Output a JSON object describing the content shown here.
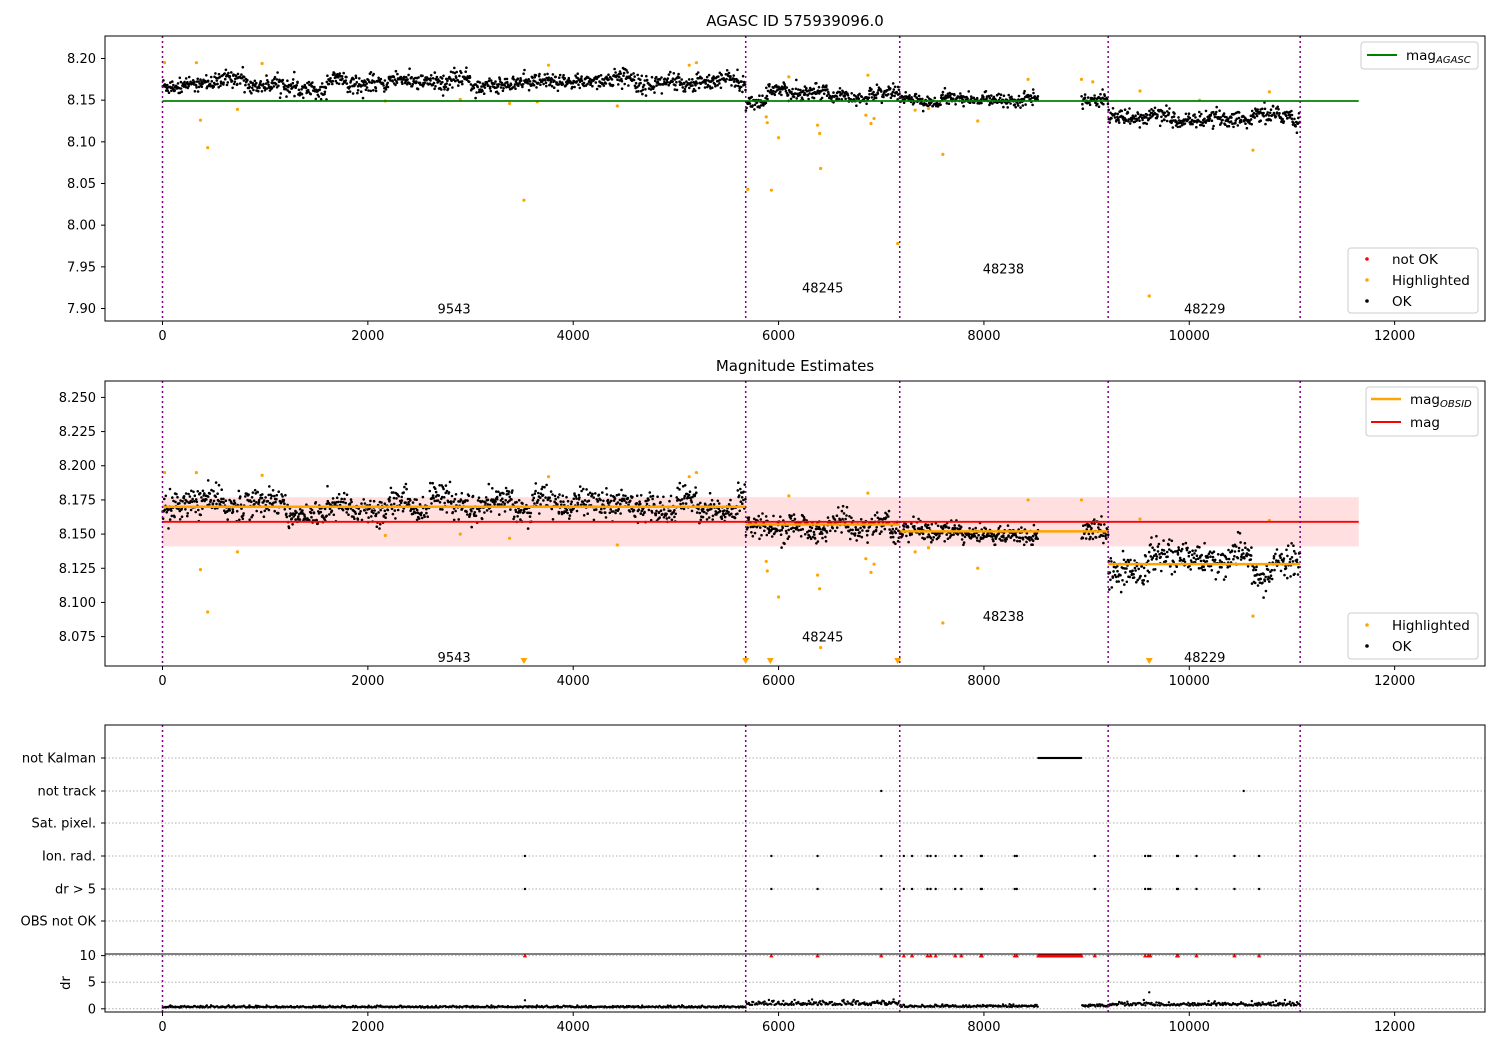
{
  "chart_data": [
    {
      "type": "scatter",
      "title": "AGASC ID 575939096.0",
      "xlabel": "",
      "ylabel": "",
      "xlim": [
        -560,
        12880
      ],
      "ylim": [
        7.885,
        8.227
      ],
      "xticks": [
        0,
        2000,
        4000,
        6000,
        8000,
        10000,
        12000
      ],
      "yticks": [
        7.9,
        7.95,
        8.0,
        8.05,
        8.1,
        8.15,
        8.2
      ],
      "ytick_labels": [
        "7.90",
        "7.95",
        "8.00",
        "8.05",
        "8.10",
        "8.15",
        "8.20"
      ],
      "obsid_boundaries": [
        0,
        5680,
        7180,
        9210,
        11080
      ],
      "obsid_labels": [
        {
          "text": "9543",
          "x": 2840,
          "y": 7.9
        },
        {
          "text": "48245",
          "x": 6430,
          "y": 7.925
        },
        {
          "text": "48238",
          "x": 8190,
          "y": 7.948
        },
        {
          "text": "48229",
          "x": 10150,
          "y": 7.9
        }
      ],
      "lines": [
        {
          "name": "mag_AGASC",
          "color": "#008000",
          "y": 8.149,
          "x_range": [
            0,
            11650
          ]
        }
      ],
      "ok_segments": [
        {
          "x_range": [
            0,
            5680
          ],
          "level": 8.171,
          "spread": 0.009
        },
        {
          "x_range": [
            5680,
            7180
          ],
          "level": 8.157,
          "spread": 0.008
        },
        {
          "x_range": [
            7180,
            8530
          ],
          "level": 8.149,
          "spread": 0.006
        },
        {
          "x_range": [
            8950,
            9210
          ],
          "level": 8.154,
          "spread": 0.008
        },
        {
          "x_range": [
            9210,
            11080
          ],
          "level": 8.128,
          "spread": 0.009
        }
      ],
      "highlighted": [
        [
          20,
          8.195
        ],
        [
          330,
          8.195
        ],
        [
          370,
          8.126
        ],
        [
          440,
          8.093
        ],
        [
          730,
          8.139
        ],
        [
          970,
          8.194
        ],
        [
          2170,
          8.149
        ],
        [
          2900,
          8.151
        ],
        [
          3380,
          8.146
        ],
        [
          3520,
          8.03
        ],
        [
          3650,
          8.148
        ],
        [
          3760,
          8.192
        ],
        [
          4430,
          8.143
        ],
        [
          5130,
          8.192
        ],
        [
          5200,
          8.195
        ],
        [
          5700,
          8.043
        ],
        [
          5880,
          8.13
        ],
        [
          5890,
          8.123
        ],
        [
          5930,
          8.042
        ],
        [
          6000,
          8.105
        ],
        [
          6100,
          8.178
        ],
        [
          6380,
          8.12
        ],
        [
          6400,
          8.11
        ],
        [
          6410,
          8.068
        ],
        [
          6850,
          8.132
        ],
        [
          6870,
          8.18
        ],
        [
          6900,
          8.122
        ],
        [
          6930,
          8.128
        ],
        [
          7160,
          7.978
        ],
        [
          7330,
          8.138
        ],
        [
          7460,
          8.14
        ],
        [
          7600,
          8.085
        ],
        [
          7940,
          8.125
        ],
        [
          8430,
          8.175
        ],
        [
          8950,
          8.175
        ],
        [
          9060,
          8.172
        ],
        [
          9520,
          8.161
        ],
        [
          9610,
          7.915
        ],
        [
          10100,
          8.15
        ],
        [
          10620,
          8.09
        ],
        [
          10780,
          8.16
        ]
      ],
      "legend_upper": [
        "mag_AGASC"
      ],
      "legend_lower": [
        {
          "name": "not OK",
          "color": "#ff0000"
        },
        {
          "name": "Highlighted",
          "color": "#ffa500"
        },
        {
          "name": "OK",
          "color": "#000000"
        }
      ]
    },
    {
      "type": "scatter",
      "title": "Magnitude Estimates",
      "xlim": [
        -560,
        12880
      ],
      "ylim": [
        8.0535,
        8.262
      ],
      "xticks": [
        0,
        2000,
        4000,
        6000,
        8000,
        10000,
        12000
      ],
      "yticks": [
        8.075,
        8.1,
        8.125,
        8.15,
        8.175,
        8.2,
        8.225,
        8.25
      ],
      "ytick_labels": [
        "8.075",
        "8.100",
        "8.125",
        "8.150",
        "8.175",
        "8.200",
        "8.225",
        "8.250"
      ],
      "obsid_boundaries": [
        0,
        5680,
        7180,
        9210,
        11080
      ],
      "obsid_labels": [
        {
          "text": "9543",
          "x": 2840,
          "y": 8.06
        },
        {
          "text": "48245",
          "x": 6430,
          "y": 8.075
        },
        {
          "text": "48238",
          "x": 8190,
          "y": 8.09
        },
        {
          "text": "48229",
          "x": 10150,
          "y": 8.06
        }
      ],
      "mag": {
        "value": 8.159,
        "band": [
          8.141,
          8.177
        ],
        "x_range": [
          0,
          11650
        ],
        "color": "#ff0000",
        "band_color": "#ffdfe0"
      },
      "mag_obsid": [
        {
          "x_range": [
            0,
            5680
          ],
          "value": 8.17
        },
        {
          "x_range": [
            5680,
            7180
          ],
          "value": 8.157
        },
        {
          "x_range": [
            7180,
            8530
          ],
          "value": 8.152
        },
        {
          "x_range": [
            8530,
            9210
          ],
          "value": 8.152
        },
        {
          "x_range": [
            9210,
            11080
          ],
          "value": 8.128
        }
      ],
      "ok_segments": [
        {
          "x_range": [
            0,
            5680
          ],
          "level": 8.171,
          "spread": 0.009
        },
        {
          "x_range": [
            5680,
            7180
          ],
          "level": 8.157,
          "spread": 0.008
        },
        {
          "x_range": [
            7180,
            8530
          ],
          "level": 8.15,
          "spread": 0.006
        },
        {
          "x_range": [
            8950,
            9210
          ],
          "level": 8.154,
          "spread": 0.008
        },
        {
          "x_range": [
            9210,
            11080
          ],
          "level": 8.128,
          "spread": 0.01
        }
      ],
      "highlighted": [
        [
          20,
          8.195
        ],
        [
          330,
          8.195
        ],
        [
          370,
          8.124
        ],
        [
          440,
          8.093
        ],
        [
          730,
          8.137
        ],
        [
          970,
          8.193
        ],
        [
          2170,
          8.149
        ],
        [
          2900,
          8.15
        ],
        [
          3380,
          8.147
        ],
        [
          3760,
          8.192
        ],
        [
          4430,
          8.142
        ],
        [
          5130,
          8.192
        ],
        [
          5200,
          8.195
        ],
        [
          5880,
          8.13
        ],
        [
          5890,
          8.123
        ],
        [
          6000,
          8.104
        ],
        [
          6100,
          8.178
        ],
        [
          6380,
          8.12
        ],
        [
          6400,
          8.11
        ],
        [
          6410,
          8.067
        ],
        [
          6850,
          8.132
        ],
        [
          6870,
          8.18
        ],
        [
          6900,
          8.122
        ],
        [
          6930,
          8.128
        ],
        [
          7330,
          8.137
        ],
        [
          7460,
          8.14
        ],
        [
          7600,
          8.085
        ],
        [
          7940,
          8.125
        ],
        [
          8430,
          8.175
        ],
        [
          8950,
          8.175
        ],
        [
          9520,
          8.161
        ],
        [
          10620,
          8.09
        ],
        [
          10780,
          8.16
        ]
      ],
      "offscale_markers_x": [
        3520,
        5680,
        5920,
        7160,
        9610
      ],
      "legend_upper": [
        "mag_OBSID",
        "mag"
      ],
      "legend_lower": [
        {
          "name": "Highlighted",
          "color": "#ffa500"
        },
        {
          "name": "OK",
          "color": "#000000"
        }
      ]
    },
    {
      "type": "scatter",
      "title": "",
      "xlim": [
        -560,
        12880
      ],
      "flag_rows": [
        "not Kalman",
        "not track",
        "Sat. pixel.",
        "Ion. rad.",
        "dr > 5",
        "OBS not OK"
      ],
      "flags": {
        "not Kalman": {
          "x_range": [
            8530,
            8950
          ]
        },
        "not track": {
          "x": [
            7000,
            10530
          ]
        },
        "Sat. pixel.": {
          "x": []
        },
        "Ion. rad.": {
          "x": [
            3530,
            5930,
            6380,
            7000,
            7220,
            7300,
            7450,
            7480,
            7530,
            7720,
            7780,
            7970,
            7980,
            8300,
            8320,
            9080,
            9570,
            9600,
            9620,
            9880,
            9890,
            10070,
            10440,
            10680
          ]
        },
        "dr > 5": {
          "x": [
            3530,
            5930,
            6380,
            7000,
            7220,
            7300,
            7450,
            7480,
            7530,
            7720,
            7780,
            7970,
            7980,
            8300,
            8320,
            9080,
            9570,
            9600,
            9620,
            9880,
            9890,
            10070,
            10440,
            10680
          ]
        },
        "OBS not OK": {
          "x": []
        }
      },
      "dr_axis": {
        "ylabel": "dr",
        "yticks": [
          0,
          5,
          10
        ],
        "ylim": [
          -0.6,
          10.3
        ],
        "clip_value": 10,
        "flag_color": "#ff0000",
        "spikes": [
          [
            3530,
            1.6
          ],
          [
            9610,
            3.1
          ]
        ]
      },
      "xticks": [
        0,
        2000,
        4000,
        6000,
        8000,
        10000,
        12000
      ],
      "obsid_boundaries": [
        0,
        5680,
        7180,
        9210,
        11080
      ]
    }
  ]
}
